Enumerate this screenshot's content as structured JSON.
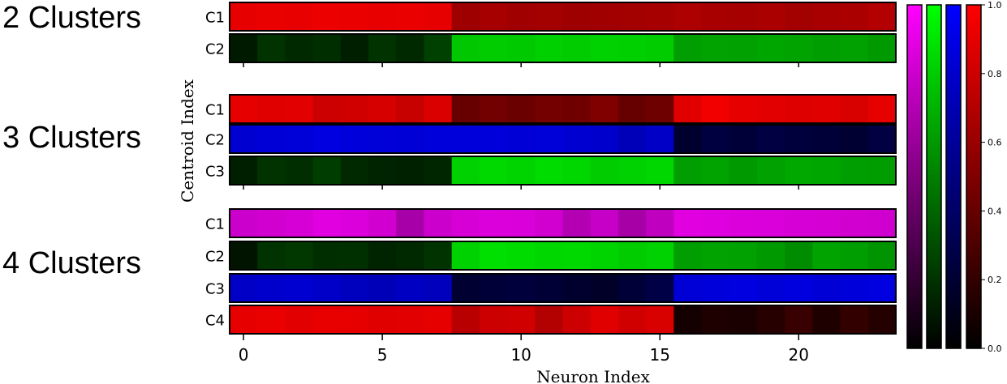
{
  "chart_data": {
    "type": "heatmap",
    "xlabel": "Neuron Index",
    "ylabel": "Centroid Index",
    "x_ticks": [
      0,
      5,
      10,
      15,
      20
    ],
    "n_neurons": 24,
    "colorbar": {
      "ticks": [
        "0.0",
        "0.2",
        "0.4",
        "0.6",
        "0.8",
        "1.0"
      ],
      "range": [
        0,
        1
      ],
      "colormaps": [
        {
          "name": "magenta",
          "color": "#ff00ff"
        },
        {
          "name": "green",
          "color": "#00ff00"
        },
        {
          "name": "blue",
          "color": "#0000ff"
        },
        {
          "name": "red",
          "color": "#ff0000"
        }
      ]
    },
    "groups": [
      {
        "label": "2 Clusters",
        "rows": [
          {
            "label": "C1",
            "color": "#ff0000",
            "values": [
              0.9,
              0.92,
              0.91,
              0.93,
              0.92,
              0.91,
              0.92,
              0.9,
              0.62,
              0.65,
              0.63,
              0.64,
              0.62,
              0.63,
              0.64,
              0.65,
              0.68,
              0.66,
              0.65,
              0.67,
              0.64,
              0.66,
              0.67,
              0.7
            ]
          },
          {
            "label": "C2",
            "color": "#00ff00",
            "values": [
              0.1,
              0.2,
              0.16,
              0.18,
              0.12,
              0.2,
              0.16,
              0.25,
              0.78,
              0.8,
              0.79,
              0.81,
              0.8,
              0.82,
              0.81,
              0.8,
              0.62,
              0.64,
              0.63,
              0.65,
              0.64,
              0.62,
              0.63,
              0.6
            ]
          }
        ]
      },
      {
        "label": "3 Clusters",
        "rows": [
          {
            "label": "C1",
            "color": "#ff0000",
            "values": [
              0.9,
              0.88,
              0.89,
              0.8,
              0.82,
              0.84,
              0.78,
              0.86,
              0.4,
              0.45,
              0.42,
              0.46,
              0.44,
              0.5,
              0.4,
              0.43,
              0.88,
              0.95,
              0.9,
              0.89,
              0.87,
              0.88,
              0.85,
              0.9
            ]
          },
          {
            "label": "C2",
            "color": "#0000ff",
            "values": [
              0.82,
              0.84,
              0.85,
              0.88,
              0.86,
              0.85,
              0.84,
              0.86,
              0.85,
              0.86,
              0.84,
              0.85,
              0.82,
              0.8,
              0.72,
              0.78,
              0.18,
              0.25,
              0.22,
              0.26,
              0.24,
              0.22,
              0.2,
              0.26
            ]
          },
          {
            "label": "C3",
            "color": "#00ff00",
            "values": [
              0.12,
              0.2,
              0.18,
              0.24,
              0.16,
              0.14,
              0.13,
              0.15,
              0.82,
              0.85,
              0.83,
              0.86,
              0.84,
              0.8,
              0.82,
              0.84,
              0.62,
              0.64,
              0.6,
              0.63,
              0.66,
              0.65,
              0.62,
              0.61
            ]
          }
        ]
      },
      {
        "label": "4 Clusters",
        "rows": [
          {
            "label": "C1",
            "color": "#ff00ff",
            "values": [
              0.8,
              0.82,
              0.84,
              0.88,
              0.86,
              0.82,
              0.66,
              0.8,
              0.84,
              0.86,
              0.85,
              0.82,
              0.7,
              0.78,
              0.65,
              0.75,
              0.88,
              0.87,
              0.86,
              0.85,
              0.84,
              0.83,
              0.82,
              0.81
            ]
          },
          {
            "label": "C2",
            "color": "#00ff00",
            "values": [
              0.08,
              0.2,
              0.22,
              0.18,
              0.19,
              0.14,
              0.16,
              0.2,
              0.82,
              0.88,
              0.86,
              0.84,
              0.85,
              0.83,
              0.8,
              0.82,
              0.62,
              0.64,
              0.63,
              0.6,
              0.55,
              0.64,
              0.62,
              0.58
            ]
          },
          {
            "label": "C3",
            "color": "#0000ff",
            "values": [
              0.78,
              0.8,
              0.82,
              0.79,
              0.75,
              0.72,
              0.76,
              0.74,
              0.2,
              0.22,
              0.24,
              0.21,
              0.18,
              0.16,
              0.22,
              0.28,
              0.84,
              0.86,
              0.88,
              0.85,
              0.87,
              0.84,
              0.86,
              0.88
            ]
          },
          {
            "label": "C4",
            "color": "#ff0000",
            "values": [
              0.9,
              0.92,
              0.89,
              0.91,
              0.9,
              0.88,
              0.89,
              0.9,
              0.72,
              0.8,
              0.82,
              0.7,
              0.8,
              0.88,
              0.82,
              0.85,
              0.08,
              0.12,
              0.1,
              0.15,
              0.22,
              0.12,
              0.2,
              0.14
            ]
          }
        ]
      }
    ]
  }
}
